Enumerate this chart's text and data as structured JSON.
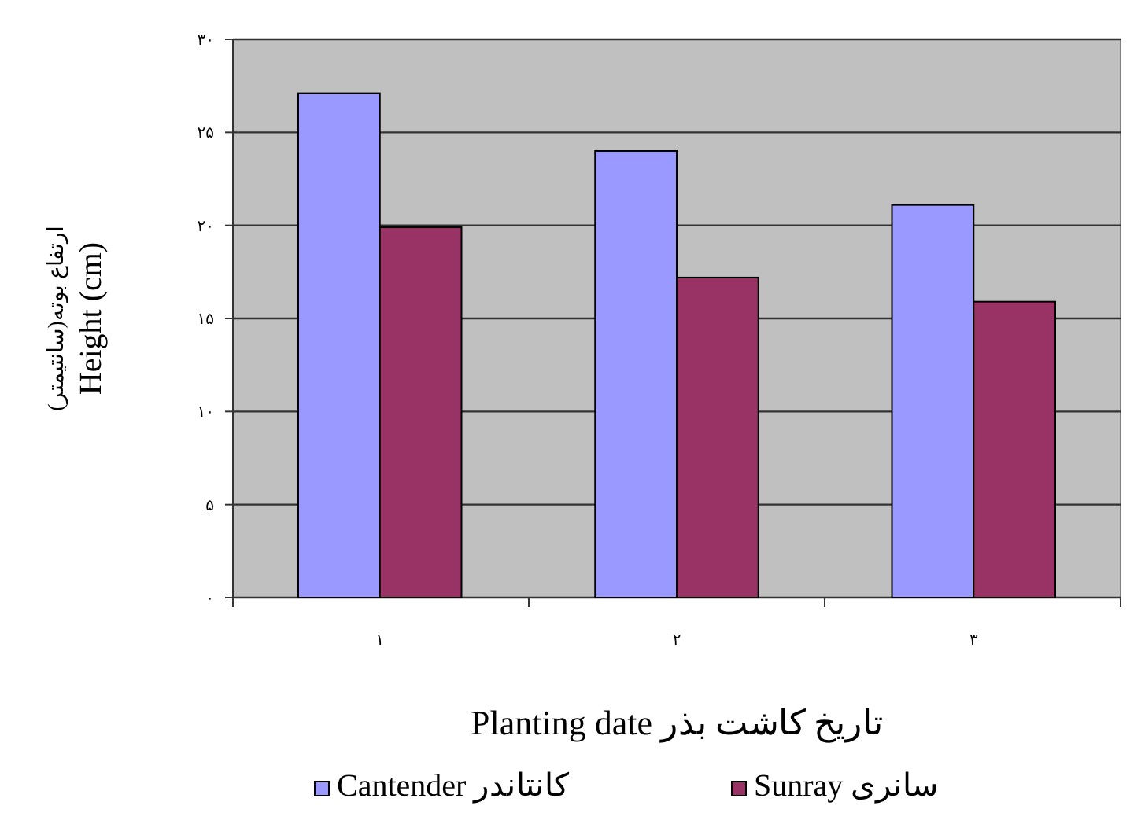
{
  "chart_data": {
    "type": "bar",
    "xlabel": "Planting date تاریخ کاشت بذر",
    "ylabel": "ارتفاع بوته(سانتیمتر)\nHeight (cm)",
    "categories": [
      "۱",
      "۲",
      "۳"
    ],
    "series": [
      {
        "name": "Cantender کانتاندر",
        "color": "#9999ff",
        "values": [
          27.1,
          24.0,
          21.1
        ]
      },
      {
        "name": "Sunray سانری",
        "color": "#993366",
        "values": [
          19.9,
          17.2,
          15.9
        ]
      }
    ],
    "ylim": [
      0,
      30
    ],
    "yticks": [
      {
        "value": 0,
        "label": "۰"
      },
      {
        "value": 5,
        "label": "۵"
      },
      {
        "value": 10,
        "label": "۱۰"
      },
      {
        "value": 15,
        "label": "۱۵"
      },
      {
        "value": 20,
        "label": "۲۰"
      },
      {
        "value": 25,
        "label": "۲۵"
      },
      {
        "value": 30,
        "label": "۳۰"
      }
    ],
    "grid": "y",
    "legend": "bottom"
  }
}
